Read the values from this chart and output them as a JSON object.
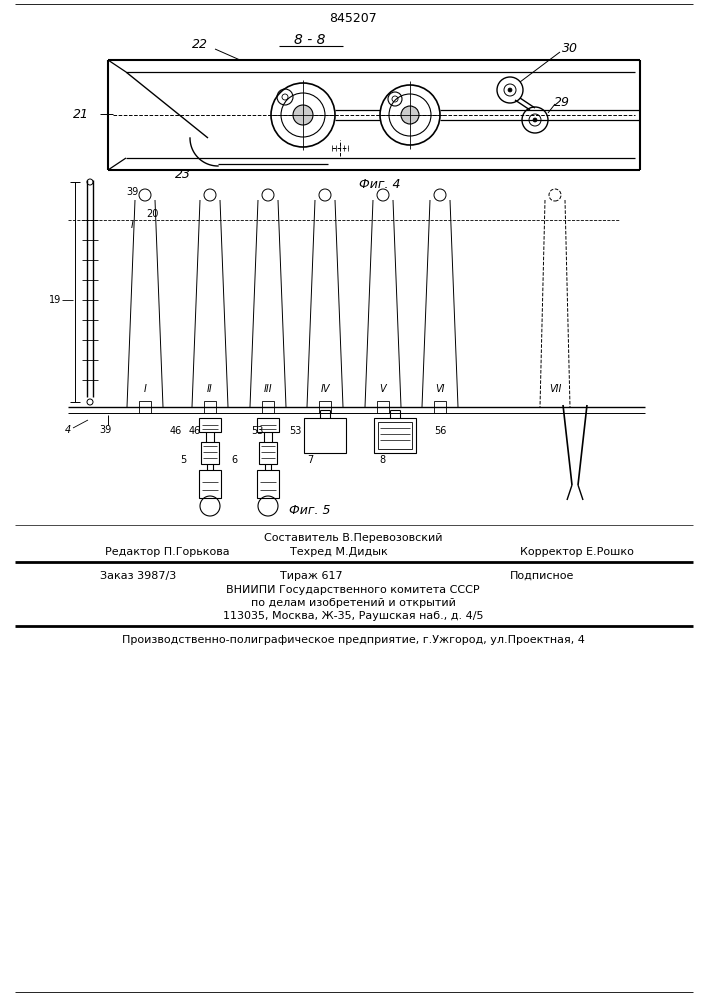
{
  "patent_number": "845207",
  "fig4_label": "Фиг. 4",
  "fig5_label": "Фиг. 5",
  "section_label": "8 - 8",
  "footer_line1": "Составитель В.Перевозовский",
  "footer_line2_left": "Редактор П.Горькова",
  "footer_line2_mid": "Техред М.Дидык",
  "footer_line2_right": "Корректор Е.Рошко",
  "footer_order": "Заказ 3987/3",
  "footer_tirazh": "Тираж 617",
  "footer_podpisnoe": "Подписное",
  "footer_vnipi": "ВНИИПИ Государственного комитета СССР",
  "footer_po_delam": "по делам изобретений и открытий",
  "footer_address": "113035, Москва, Ж-35, Раушская наб., д. 4/5",
  "footer_production": "Производственно-полиграфическое предприятие, г.Ужгород, ул.Проектная, 4",
  "bg_color": "#ffffff"
}
